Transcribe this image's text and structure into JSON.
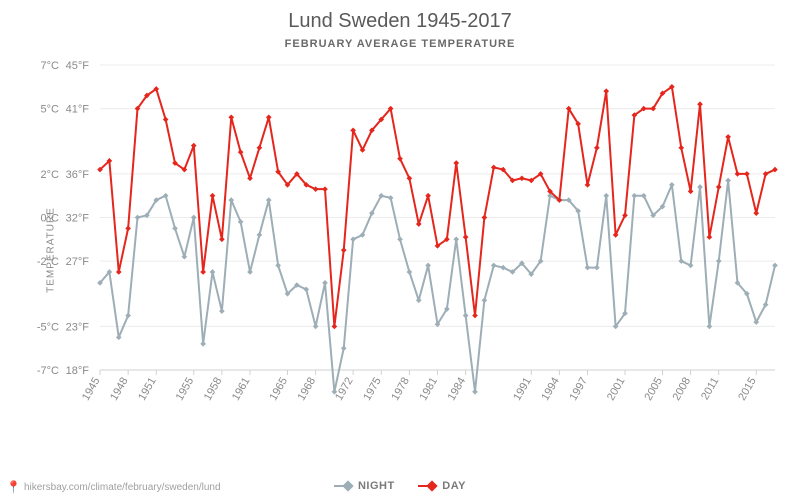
{
  "title": "Lund Sweden 1945-2017",
  "subtitle": "FEBRUARY AVERAGE TEMPERATURE",
  "y_axis_label": "TEMPERATURE",
  "attribution": "hikersbay.com/climate/february/sweden/lund",
  "legend": {
    "night": "NIGHT",
    "day": "DAY"
  },
  "chart": {
    "type": "line",
    "background_color": "#ffffff",
    "grid_color": "#ececec",
    "axis_color": "#d0d0d0",
    "title_fontsize": 20,
    "title_color": "#5a5a5a",
    "subtitle_fontsize": 11,
    "label_fontsize": 11,
    "tick_color": "#8a8a8a",
    "line_width": 2,
    "marker_style": "diamond",
    "marker_size": 4,
    "series": {
      "day": {
        "color": "#e5261c",
        "label": "DAY"
      },
      "night": {
        "color": "#9daeb7",
        "label": "NIGHT"
      }
    },
    "y_scale": {
      "min_c": -7,
      "max_c": 7,
      "ticks": [
        {
          "c": "7°C",
          "f": "45°F",
          "v": 7
        },
        {
          "c": "5°C",
          "f": "41°F",
          "v": 5
        },
        {
          "c": "2°C",
          "f": "36°F",
          "v": 2
        },
        {
          "c": "0°C",
          "f": "32°F",
          "v": 0
        },
        {
          "c": "-2°C",
          "f": "27°F",
          "v": -2
        },
        {
          "c": "-5°C",
          "f": "23°F",
          "v": -5
        },
        {
          "c": "-7°C",
          "f": "18°F",
          "v": -7
        }
      ]
    },
    "x_ticks": [
      1945,
      1948,
      1951,
      1955,
      1958,
      1961,
      1965,
      1968,
      1972,
      1975,
      1978,
      1981,
      1984,
      1991,
      1994,
      1997,
      2001,
      2005,
      2008,
      2011,
      2015
    ],
    "years": [
      1945,
      1946,
      1947,
      1948,
      1949,
      1950,
      1951,
      1952,
      1953,
      1954,
      1955,
      1956,
      1957,
      1958,
      1959,
      1960,
      1961,
      1962,
      1963,
      1964,
      1965,
      1966,
      1967,
      1968,
      1969,
      1970,
      1971,
      1972,
      1973,
      1974,
      1975,
      1976,
      1977,
      1978,
      1979,
      1980,
      1981,
      1982,
      1983,
      1984,
      1985,
      1986,
      1987,
      1988,
      1989,
      1990,
      1991,
      1992,
      1993,
      1994,
      1995,
      1996,
      1997,
      1998,
      1999,
      2000,
      2001,
      2002,
      2003,
      2004,
      2005,
      2006,
      2007,
      2008,
      2009,
      2010,
      2011,
      2012,
      2013,
      2014,
      2015,
      2016,
      2017
    ],
    "day_values": [
      2.2,
      2.6,
      -2.5,
      -0.5,
      5.0,
      5.6,
      5.9,
      4.5,
      2.5,
      2.2,
      3.3,
      -2.5,
      1.0,
      -1.0,
      4.6,
      3.0,
      1.8,
      3.2,
      4.6,
      2.1,
      1.5,
      2.0,
      1.5,
      1.3,
      1.3,
      -5.0,
      -1.5,
      4.0,
      3.1,
      4.0,
      4.5,
      5.0,
      2.7,
      1.8,
      -0.3,
      1.0,
      -1.3,
      -1.0,
      2.5,
      -0.9,
      -4.5,
      0.0,
      2.3,
      2.2,
      1.7,
      1.8,
      1.7,
      2.0,
      1.2,
      0.8,
      5.0,
      4.3,
      1.5,
      3.2,
      5.8,
      -0.8,
      0.1,
      4.7,
      5.0,
      5.0,
      5.7,
      6.0,
      3.2,
      1.2,
      5.2,
      -0.9,
      1.4,
      3.7,
      2.0,
      2.0,
      0.2,
      2.0,
      2.2
    ],
    "night_values": [
      -3.0,
      -2.5,
      -5.5,
      -4.5,
      0.0,
      0.1,
      0.8,
      1.0,
      -0.5,
      -1.8,
      0.0,
      -5.8,
      -2.5,
      -4.3,
      0.8,
      -0.2,
      -2.5,
      -0.8,
      0.8,
      -2.2,
      -3.5,
      -3.1,
      -3.3,
      -5.0,
      -3.0,
      -8.0,
      -6.0,
      -1.0,
      -0.8,
      0.2,
      1.0,
      0.9,
      -1.0,
      -2.5,
      -3.8,
      -2.2,
      -4.9,
      -4.2,
      -1.0,
      -4.5,
      -8.0,
      -3.8,
      -2.2,
      -2.3,
      -2.5,
      -2.1,
      -2.6,
      -2.0,
      1.0,
      0.8,
      0.8,
      0.3,
      -2.3,
      -2.3,
      1.0,
      -5.0,
      -4.4,
      1.0,
      1.0,
      0.1,
      0.5,
      1.5,
      -2.0,
      -2.2,
      1.4,
      -5.0,
      -2.0,
      1.7,
      -3.0,
      -3.5,
      -4.8,
      -4.0,
      -2.2
    ]
  }
}
